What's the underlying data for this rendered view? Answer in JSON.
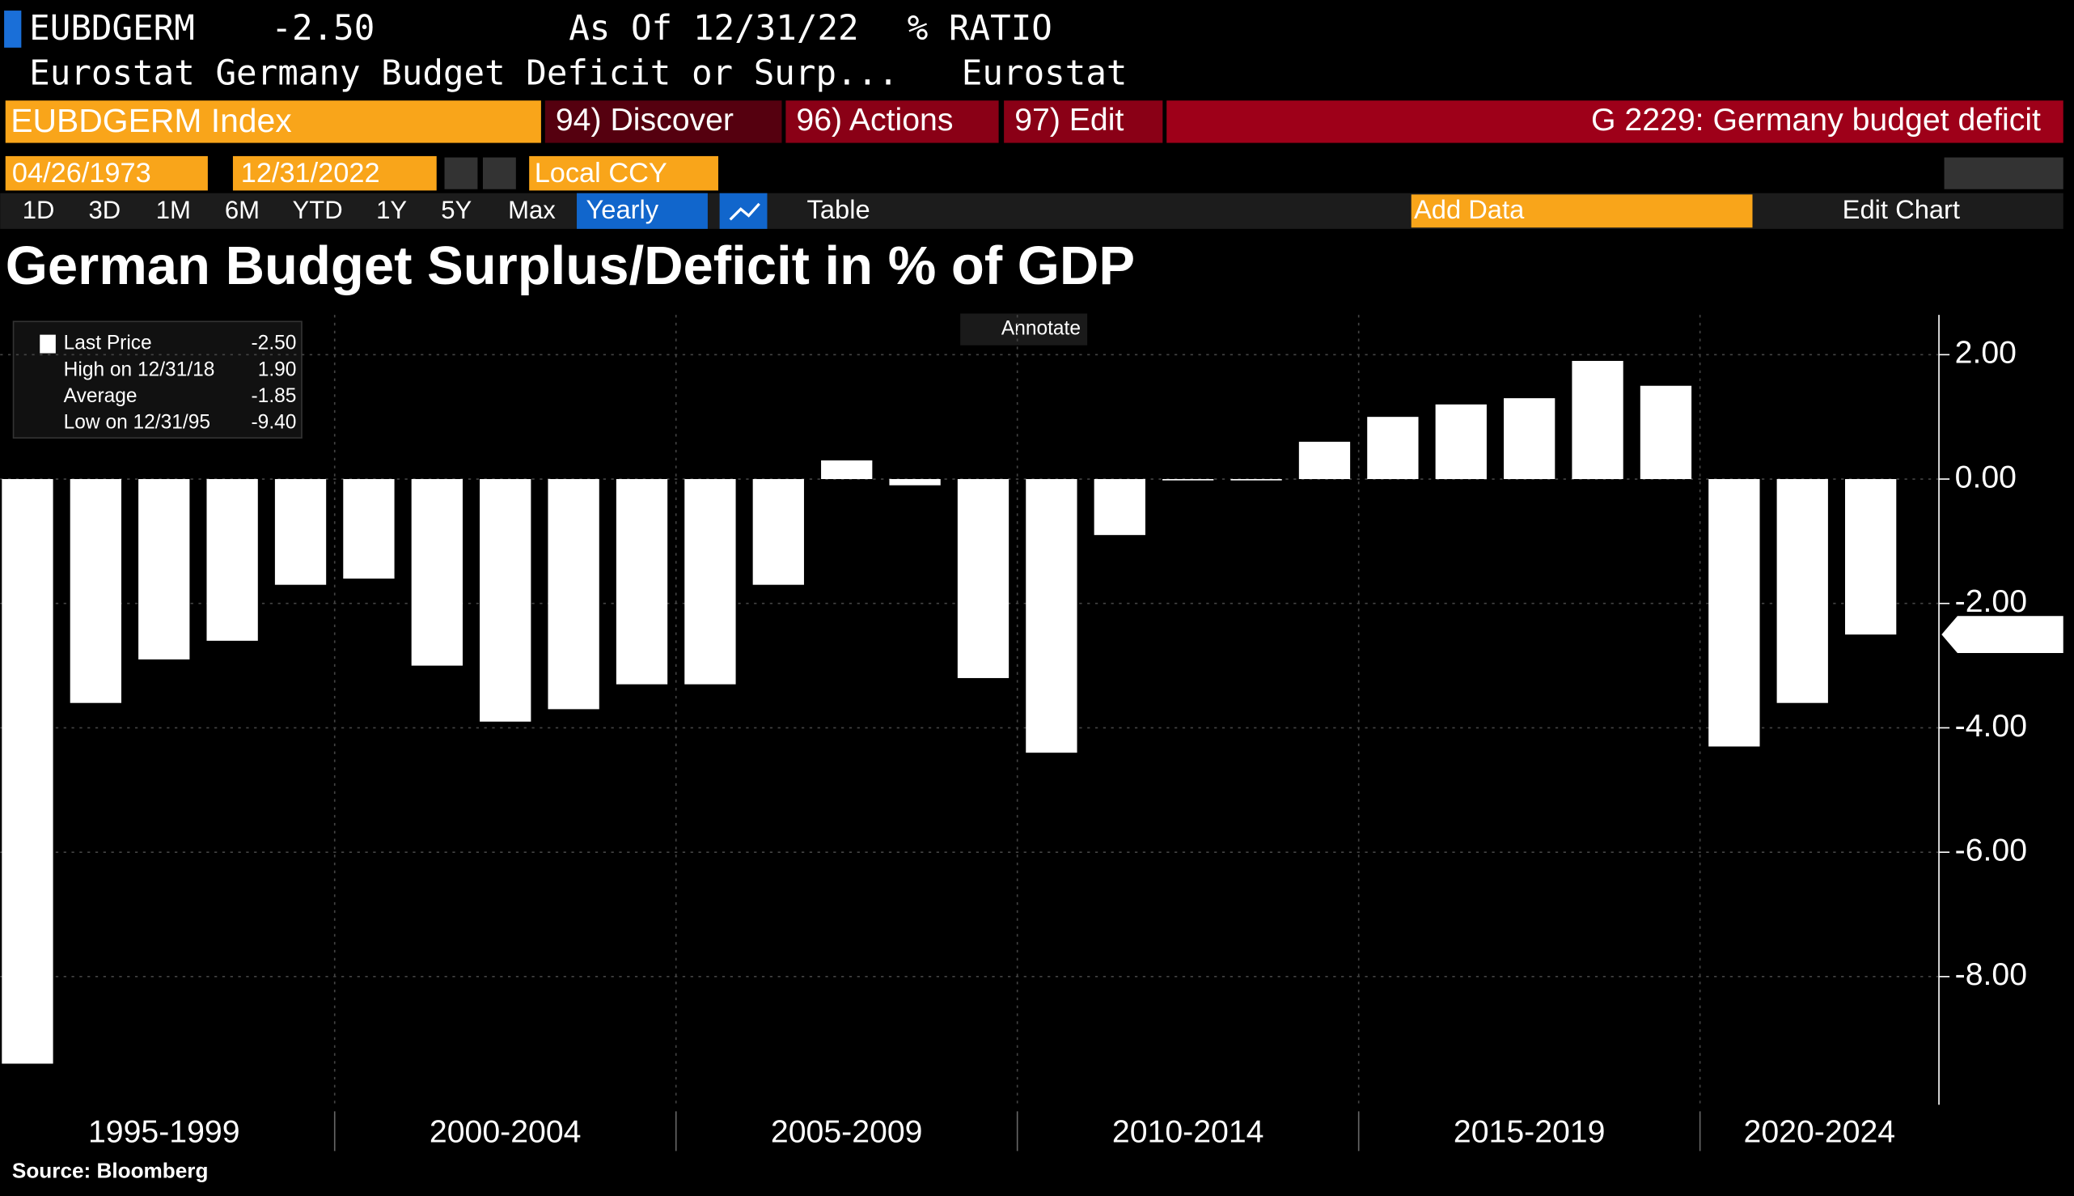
{
  "header": {
    "ticker": "EUBDGERM",
    "price": "-2.50",
    "as_of_label": "As Of",
    "as_of_date": "12/31/22",
    "unit": "% RATIO",
    "description": "Eurostat Germany Budget Deficit or Surp...",
    "source_name": "Eurostat"
  },
  "toolbar": {
    "security": "EUBDGERM Index",
    "menu": [
      "94) Discover",
      "96) Actions",
      "97) Edit"
    ],
    "function": "G 2229: Germany budget deficit",
    "start_date": "04/26/1973",
    "end_date": "12/31/2022",
    "currency": "Local CCY",
    "periods": [
      "1D",
      "3D",
      "1M",
      "6M",
      "YTD",
      "1Y",
      "5Y",
      "Max"
    ],
    "frequency": "Yearly",
    "table": "Table",
    "add_data": "Add Data",
    "edit_chart": "Edit Chart",
    "annotate": "Annotate"
  },
  "legend": [
    {
      "label": "Last Price",
      "value": "-2.50"
    },
    {
      "label": "High on 12/31/18",
      "value": "1.90"
    },
    {
      "label": "Average",
      "value": "-1.85"
    },
    {
      "label": "Low on 12/31/95",
      "value": "-9.40"
    }
  ],
  "chart_data": {
    "type": "bar",
    "title": "German Budget Surplus/Deficit in % of GDP",
    "source": "Source: Bloomberg",
    "color": "#ffffff",
    "grid": true,
    "x": [
      1995,
      1996,
      1997,
      1998,
      1999,
      2000,
      2001,
      2002,
      2003,
      2004,
      2005,
      2006,
      2007,
      2008,
      2009,
      2010,
      2011,
      2012,
      2013,
      2014,
      2015,
      2016,
      2017,
      2018,
      2019,
      2020,
      2021,
      2022
    ],
    "values": [
      -9.4,
      -3.6,
      -2.9,
      -2.6,
      -1.7,
      -1.6,
      -3.0,
      -3.9,
      -3.7,
      -3.3,
      -3.3,
      -1.7,
      0.3,
      -0.1,
      -3.2,
      -4.4,
      -0.9,
      0.0,
      0.0,
      0.6,
      1.0,
      1.2,
      1.3,
      1.9,
      1.5,
      -4.3,
      -3.6,
      -2.5
    ],
    "xlim": [
      1994.6,
      2023
    ],
    "xticks": [
      {
        "value": 1997,
        "label": "1995-1999"
      },
      {
        "value": 2002,
        "label": "2000-2004"
      },
      {
        "value": 2007,
        "label": "2005-2009"
      },
      {
        "value": 2012,
        "label": "2010-2014"
      },
      {
        "value": 2017,
        "label": "2015-2019"
      },
      {
        "value": 2022,
        "label": "2020-2024"
      }
    ],
    "ylim": [
      -10.06,
      2.64
    ],
    "yticks": [
      {
        "value": 2,
        "label": "2.00"
      },
      {
        "value": 0,
        "label": "0.00"
      },
      {
        "value": -2,
        "label": "-2.00"
      },
      {
        "value": -4,
        "label": "-4.00"
      },
      {
        "value": -6,
        "label": "-6.00"
      },
      {
        "value": -8,
        "label": "-8.00"
      }
    ],
    "last_value_label": "-2.50"
  }
}
